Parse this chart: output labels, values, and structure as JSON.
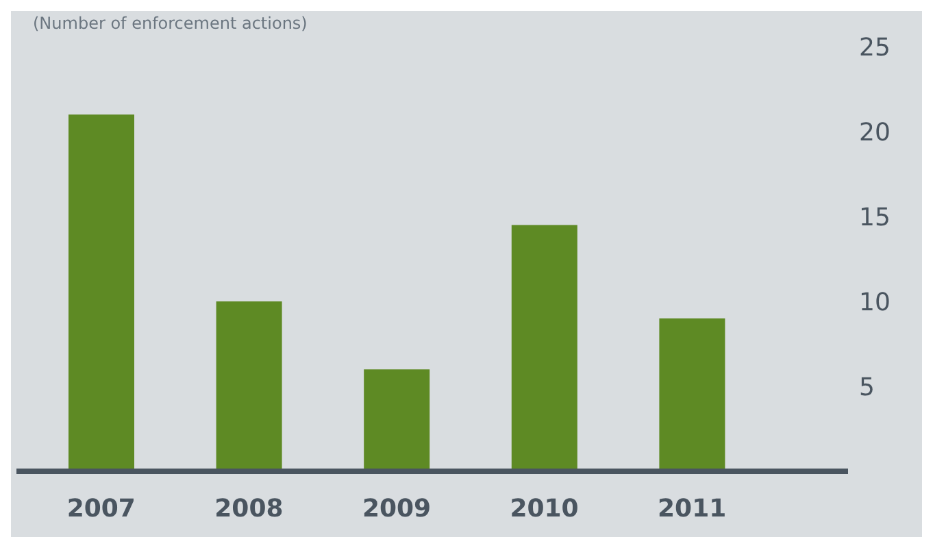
{
  "chart_data": {
    "type": "bar",
    "ylabel": "(Number of enforcement actions)",
    "categories": [
      "2007",
      "2008",
      "2009",
      "2010",
      "2011"
    ],
    "values": [
      21,
      10,
      6,
      14.5,
      9
    ],
    "color": "#5e8a24",
    "ylim": [
      0,
      25
    ],
    "yticks": [
      5,
      10,
      15,
      20,
      25
    ],
    "grid": false,
    "legend": false
  }
}
